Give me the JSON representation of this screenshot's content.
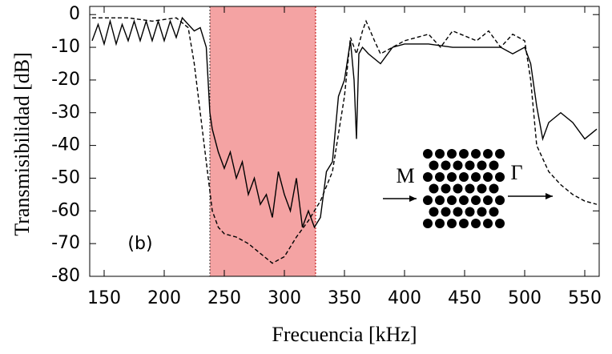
{
  "chart_data": {
    "type": "line",
    "xlabel": "Frecuencia [kHz]",
    "ylabel": "Transmisibilidad [dB]",
    "xlim": [
      138,
      562
    ],
    "ylim": [
      -80,
      2.5
    ],
    "xticks": [
      150,
      200,
      250,
      300,
      350,
      400,
      450,
      500,
      550
    ],
    "yticks": [
      0,
      -10,
      -20,
      -30,
      -40,
      -50,
      -60,
      -70,
      -80
    ],
    "highlight_range": [
      238,
      326
    ],
    "highlight_color": "#f4a3a3",
    "annotations": [
      "(b)",
      "M",
      "Γ"
    ],
    "series": [
      {
        "color": "#000000",
        "dash": "solid",
        "x": [
          140,
          145,
          150,
          155,
          160,
          165,
          170,
          175,
          180,
          185,
          190,
          195,
          200,
          205,
          210,
          215,
          220,
          225,
          230,
          235,
          238,
          240,
          245,
          250,
          255,
          260,
          265,
          270,
          275,
          280,
          285,
          290,
          295,
          300,
          305,
          310,
          315,
          320,
          325,
          330,
          335,
          340,
          345,
          350,
          355,
          358,
          360,
          362,
          365,
          370,
          380,
          390,
          400,
          420,
          440,
          460,
          480,
          490,
          500,
          505,
          510,
          515,
          520,
          530,
          540,
          550,
          560
        ],
        "values": [
          -8,
          -3,
          -9,
          -2,
          -9,
          -3,
          -8,
          -2,
          -8,
          -2,
          -8,
          -2,
          -8,
          -2,
          -7,
          -1,
          -3,
          -5,
          -4,
          -10,
          -30,
          -35,
          -42,
          -47,
          -42,
          -50,
          -45,
          -55,
          -50,
          -58,
          -55,
          -62,
          -48,
          -55,
          -60,
          -50,
          -65,
          -60,
          -65,
          -62,
          -48,
          -45,
          -25,
          -20,
          -8,
          -20,
          -38,
          -12,
          -10,
          -12,
          -15,
          -10,
          -9,
          -9,
          -10,
          -10,
          -10,
          -12,
          -10,
          -15,
          -28,
          -38,
          -33,
          -30,
          -33,
          -38,
          -35
        ]
      },
      {
        "color": "#000000",
        "dash": "dashed",
        "x": [
          140,
          170,
          190,
          210,
          220,
          225,
          230,
          235,
          240,
          245,
          250,
          260,
          270,
          280,
          290,
          300,
          310,
          320,
          330,
          340,
          350,
          355,
          360,
          365,
          368,
          375,
          380,
          400,
          420,
          430,
          440,
          460,
          470,
          480,
          490,
          500,
          505,
          510,
          520,
          530,
          540,
          550,
          560
        ],
        "values": [
          -1,
          -1,
          -2,
          -1,
          -4,
          -15,
          -30,
          -45,
          -60,
          -65,
          -67,
          -68,
          -70,
          -73,
          -76,
          -74,
          -68,
          -63,
          -57,
          -48,
          -25,
          -7,
          -12,
          -5,
          -2,
          -8,
          -12,
          -8,
          -6,
          -10,
          -5,
          -8,
          -5,
          -10,
          -6,
          -8,
          -20,
          -40,
          -48,
          -52,
          -55,
          -57,
          -58
        ]
      }
    ]
  }
}
